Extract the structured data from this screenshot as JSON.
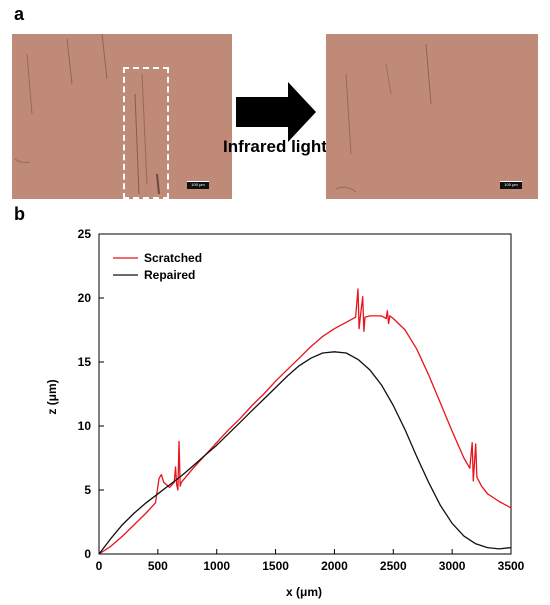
{
  "panels": {
    "a": "a",
    "b": "b"
  },
  "micrograph": {
    "scale_bar_text": "100 μm",
    "arrow_text": "Infrared light",
    "colors": {
      "tissue": "#c08a78",
      "scratch": "#6a4a40"
    }
  },
  "chart_data": {
    "type": "line",
    "xlabel": "x (μm)",
    "ylabel": "z (μm)",
    "xlim": [
      0,
      3500
    ],
    "ylim": [
      0,
      25
    ],
    "x_ticks": [
      0,
      500,
      1000,
      1500,
      2000,
      2500,
      3000,
      3500
    ],
    "y_ticks": [
      0,
      5,
      10,
      15,
      20,
      25
    ],
    "grid": false,
    "legend_position": "top-left",
    "series": [
      {
        "name": "Scratched",
        "color": "#e8141c",
        "points": [
          [
            0,
            0
          ],
          [
            100,
            0.6
          ],
          [
            200,
            1.4
          ],
          [
            300,
            2.3
          ],
          [
            400,
            3.2
          ],
          [
            480,
            4.0
          ],
          [
            510,
            5.9
          ],
          [
            530,
            6.2
          ],
          [
            550,
            5.6
          ],
          [
            600,
            5.2
          ],
          [
            640,
            5.6
          ],
          [
            650,
            6.8
          ],
          [
            660,
            5.4
          ],
          [
            670,
            5.0
          ],
          [
            680,
            8.8
          ],
          [
            690,
            5.3
          ],
          [
            700,
            5.6
          ],
          [
            800,
            6.7
          ],
          [
            900,
            7.7
          ],
          [
            1000,
            8.7
          ],
          [
            1100,
            9.7
          ],
          [
            1200,
            10.6
          ],
          [
            1300,
            11.6
          ],
          [
            1400,
            12.5
          ],
          [
            1500,
            13.5
          ],
          [
            1600,
            14.4
          ],
          [
            1700,
            15.3
          ],
          [
            1800,
            16.2
          ],
          [
            1900,
            17.0
          ],
          [
            2000,
            17.6
          ],
          [
            2100,
            18.1
          ],
          [
            2180,
            18.5
          ],
          [
            2200,
            20.7
          ],
          [
            2210,
            17.6
          ],
          [
            2220,
            18.5
          ],
          [
            2240,
            20.1
          ],
          [
            2250,
            17.4
          ],
          [
            2260,
            18.5
          ],
          [
            2300,
            18.6
          ],
          [
            2400,
            18.6
          ],
          [
            2440,
            18.4
          ],
          [
            2450,
            19.0
          ],
          [
            2460,
            18.0
          ],
          [
            2470,
            18.6
          ],
          [
            2500,
            18.4
          ],
          [
            2600,
            17.5
          ],
          [
            2700,
            16.0
          ],
          [
            2800,
            14.0
          ],
          [
            2900,
            11.8
          ],
          [
            3000,
            9.6
          ],
          [
            3100,
            7.5
          ],
          [
            3150,
            6.7
          ],
          [
            3170,
            8.7
          ],
          [
            3180,
            5.7
          ],
          [
            3200,
            8.6
          ],
          [
            3210,
            6.0
          ],
          [
            3250,
            5.3
          ],
          [
            3300,
            4.7
          ],
          [
            3400,
            4.1
          ],
          [
            3500,
            3.6
          ]
        ]
      },
      {
        "name": "Repaired",
        "color": "#111111",
        "points": [
          [
            0,
            0
          ],
          [
            100,
            1.2
          ],
          [
            200,
            2.3
          ],
          [
            300,
            3.2
          ],
          [
            400,
            4.0
          ],
          [
            500,
            4.7
          ],
          [
            600,
            5.4
          ],
          [
            700,
            6.1
          ],
          [
            800,
            6.9
          ],
          [
            900,
            7.7
          ],
          [
            1000,
            8.5
          ],
          [
            1100,
            9.4
          ],
          [
            1200,
            10.3
          ],
          [
            1300,
            11.2
          ],
          [
            1400,
            12.1
          ],
          [
            1500,
            13.0
          ],
          [
            1600,
            13.9
          ],
          [
            1700,
            14.7
          ],
          [
            1800,
            15.3
          ],
          [
            1900,
            15.7
          ],
          [
            2000,
            15.8
          ],
          [
            2100,
            15.7
          ],
          [
            2200,
            15.2
          ],
          [
            2300,
            14.4
          ],
          [
            2400,
            13.2
          ],
          [
            2500,
            11.6
          ],
          [
            2600,
            9.7
          ],
          [
            2700,
            7.6
          ],
          [
            2800,
            5.6
          ],
          [
            2900,
            3.8
          ],
          [
            3000,
            2.4
          ],
          [
            3100,
            1.4
          ],
          [
            3200,
            0.8
          ],
          [
            3300,
            0.5
          ],
          [
            3400,
            0.4
          ],
          [
            3500,
            0.5
          ]
        ]
      }
    ]
  }
}
